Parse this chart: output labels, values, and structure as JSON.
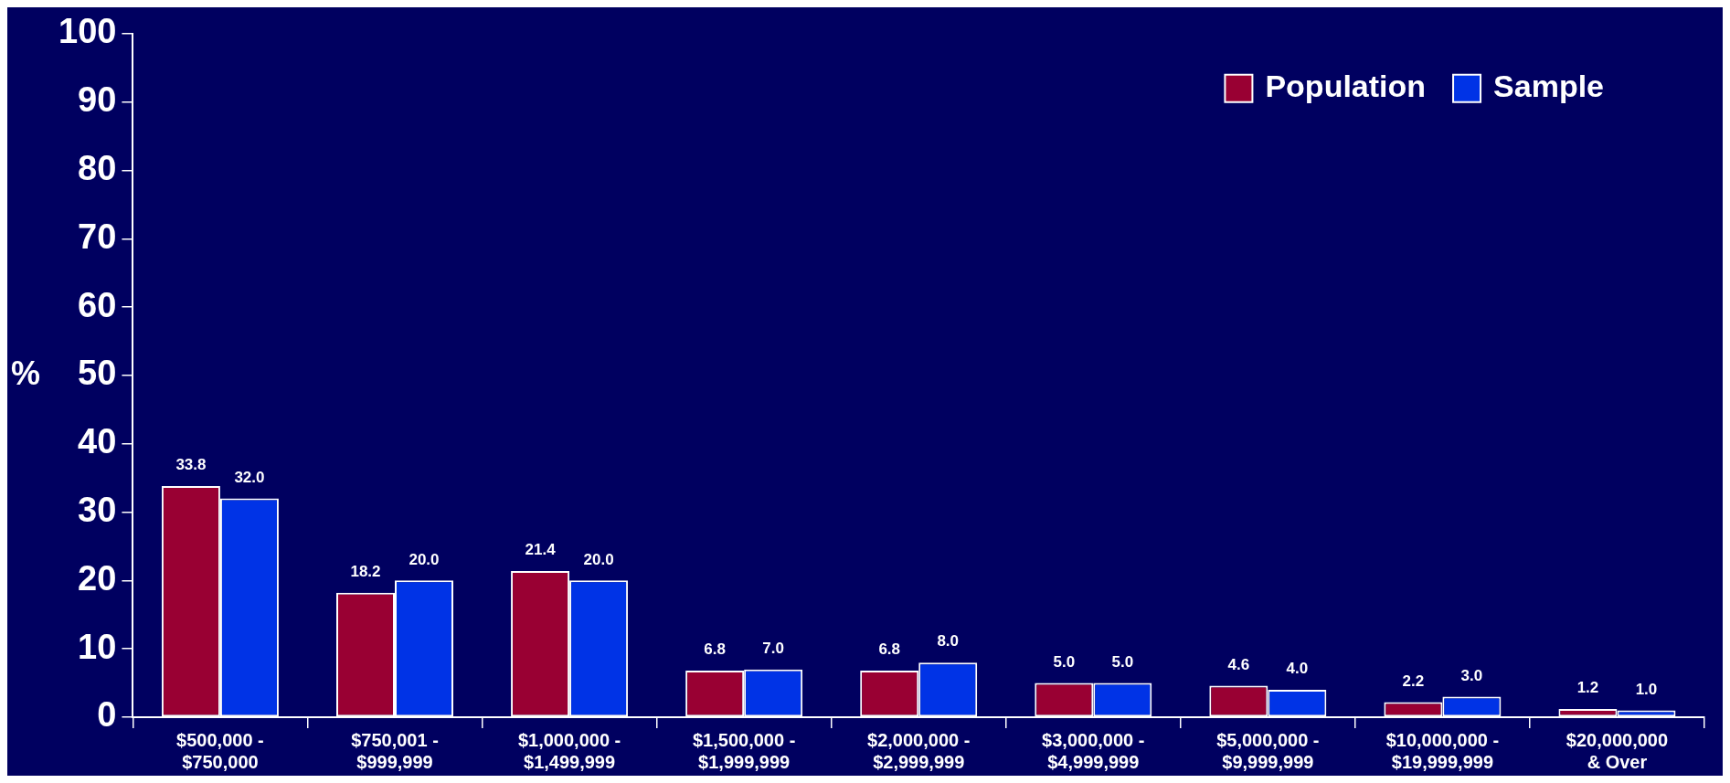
{
  "chart_data": {
    "type": "bar",
    "ylabel": "%",
    "categories": [
      "$500,000 -\n$750,000",
      "$750,001 -\n$999,999",
      "$1,000,000 -\n$1,499,999",
      "$1,500,000 -\n$1,999,999",
      "$2,000,000 -\n$2,999,999",
      "$3,000,000 -\n$4,999,999",
      "$5,000,000 -\n$9,999,999",
      "$10,000,000 -\n$19,999,999",
      "$20,000,000\n& Over"
    ],
    "series": [
      {
        "name": "Population",
        "color": "#990033",
        "values": [
          33.8,
          18.2,
          21.4,
          6.8,
          6.8,
          5.0,
          4.6,
          2.2,
          1.2
        ],
        "value_labels": [
          "33.8",
          "18.2",
          "21.4",
          "6.8",
          "6.8",
          "5.0",
          "4.6",
          "2.2",
          "1.2"
        ]
      },
      {
        "name": "Sample",
        "color": "#0033e6",
        "values": [
          32.0,
          20.0,
          20.0,
          7.0,
          8.0,
          5.0,
          4.0,
          3.0,
          1.0
        ],
        "value_labels": [
          "32.0",
          "20.0",
          "20.0",
          "7.0",
          "8.0",
          "5.0",
          "4.0",
          "3.0",
          "1.0"
        ]
      }
    ],
    "ylim": [
      0,
      100
    ],
    "yticks": [
      0,
      10,
      20,
      30,
      40,
      50,
      60,
      70,
      80,
      90,
      100
    ],
    "grid": false,
    "legend": "top right"
  }
}
